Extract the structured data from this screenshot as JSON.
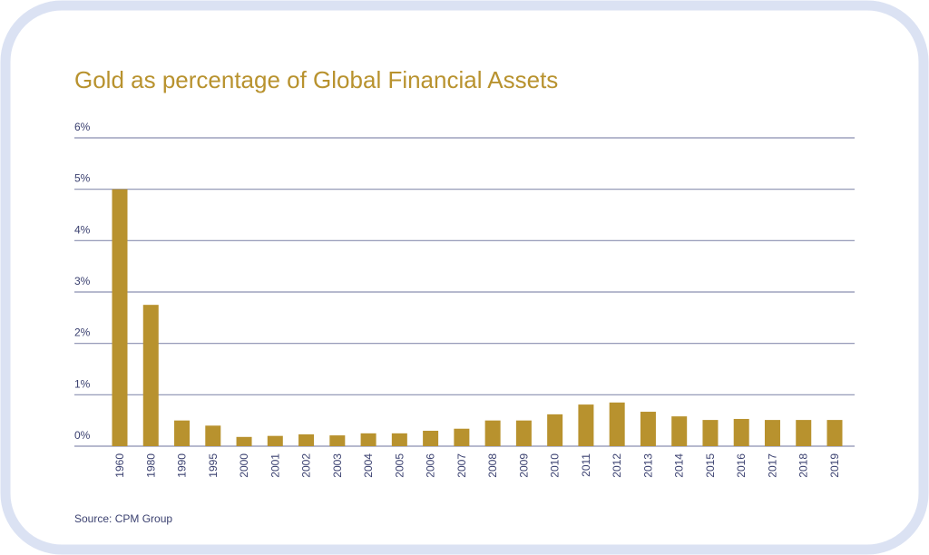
{
  "chart_data": {
    "type": "bar",
    "title": "Gold as percentage of Global Financial Assets",
    "source": "Source: CPM Group",
    "categories": [
      "1960",
      "1980",
      "1990",
      "1995",
      "2000",
      "2001",
      "2002",
      "2003",
      "2004",
      "2005",
      "2006",
      "2007",
      "2008",
      "2009",
      "2010",
      "2011",
      "2012",
      "2013",
      "2014",
      "2015",
      "2016",
      "2017",
      "2018",
      "2019"
    ],
    "values": [
      5.0,
      2.75,
      0.5,
      0.4,
      0.18,
      0.2,
      0.23,
      0.21,
      0.25,
      0.25,
      0.3,
      0.34,
      0.5,
      0.5,
      0.62,
      0.81,
      0.85,
      0.67,
      0.58,
      0.51,
      0.53,
      0.51,
      0.51,
      0.51
    ],
    "color": "#b8922e",
    "ylim": [
      0,
      6
    ],
    "yticks": [
      {
        "value": 0,
        "label": "0%"
      },
      {
        "value": 1,
        "label": "1%"
      },
      {
        "value": 2,
        "label": "2%"
      },
      {
        "value": 3,
        "label": "3%"
      },
      {
        "value": 4,
        "label": "4%"
      },
      {
        "value": 5,
        "label": "5%"
      },
      {
        "value": 6,
        "label": "6%"
      }
    ],
    "grid": true
  }
}
